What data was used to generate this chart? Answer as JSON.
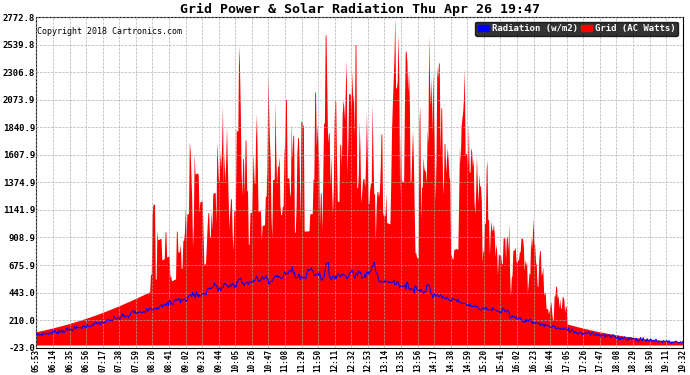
{
  "title": "Grid Power & Solar Radiation Thu Apr 26 19:47",
  "copyright": "Copyright 2018 Cartronics.com",
  "bg_color": "#ffffff",
  "plot_bg_color": "#ffffff",
  "grid_color": "#aaaaaa",
  "fill_color": "#ff0000",
  "line_color": "#0000ff",
  "yticks": [
    -23.0,
    210.0,
    443.0,
    675.9,
    908.9,
    1141.9,
    1374.9,
    1607.9,
    1840.9,
    2073.9,
    2306.8,
    2539.8,
    2772.8
  ],
  "ymin": -23.0,
  "ymax": 2772.8,
  "xtick_labels": [
    "05:53",
    "06:14",
    "06:35",
    "06:56",
    "07:17",
    "07:38",
    "07:59",
    "08:20",
    "08:41",
    "09:02",
    "09:23",
    "09:44",
    "10:05",
    "10:26",
    "10:47",
    "11:08",
    "11:29",
    "11:50",
    "12:11",
    "12:32",
    "12:53",
    "13:14",
    "13:35",
    "13:56",
    "14:17",
    "14:38",
    "14:59",
    "15:20",
    "15:41",
    "16:02",
    "16:23",
    "16:44",
    "17:05",
    "17:26",
    "17:47",
    "18:08",
    "18:29",
    "18:50",
    "19:11",
    "19:32"
  ],
  "legend_radiation_label": "Radiation (w/m2)",
  "legend_grid_label": "Grid (AC Watts)",
  "legend_radiation_bg": "#0000ff",
  "legend_grid_bg": "#ff0000",
  "n_points": 800,
  "solar_mid": 0.435,
  "solar_sigma": 0.21,
  "solar_max_val": 2772.8,
  "blue_mid": 0.435,
  "blue_sigma": 0.22,
  "blue_max_val": 700.0
}
